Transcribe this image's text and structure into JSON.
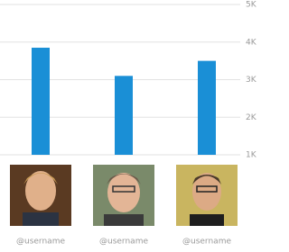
{
  "chart_data": {
    "type": "bar",
    "categories": [
      "@username",
      "@username",
      "@username"
    ],
    "values": [
      3850,
      3100,
      3500
    ],
    "color": "#1a8fd6",
    "ylim": [
      1000,
      5000
    ],
    "yticks": [
      {
        "value": 1000,
        "label": "1K"
      },
      {
        "value": 2000,
        "label": "2K"
      },
      {
        "value": 3000,
        "label": "3K"
      },
      {
        "value": 4000,
        "label": "4K"
      },
      {
        "value": 5000,
        "label": "5K"
      }
    ],
    "grid": true
  }
}
